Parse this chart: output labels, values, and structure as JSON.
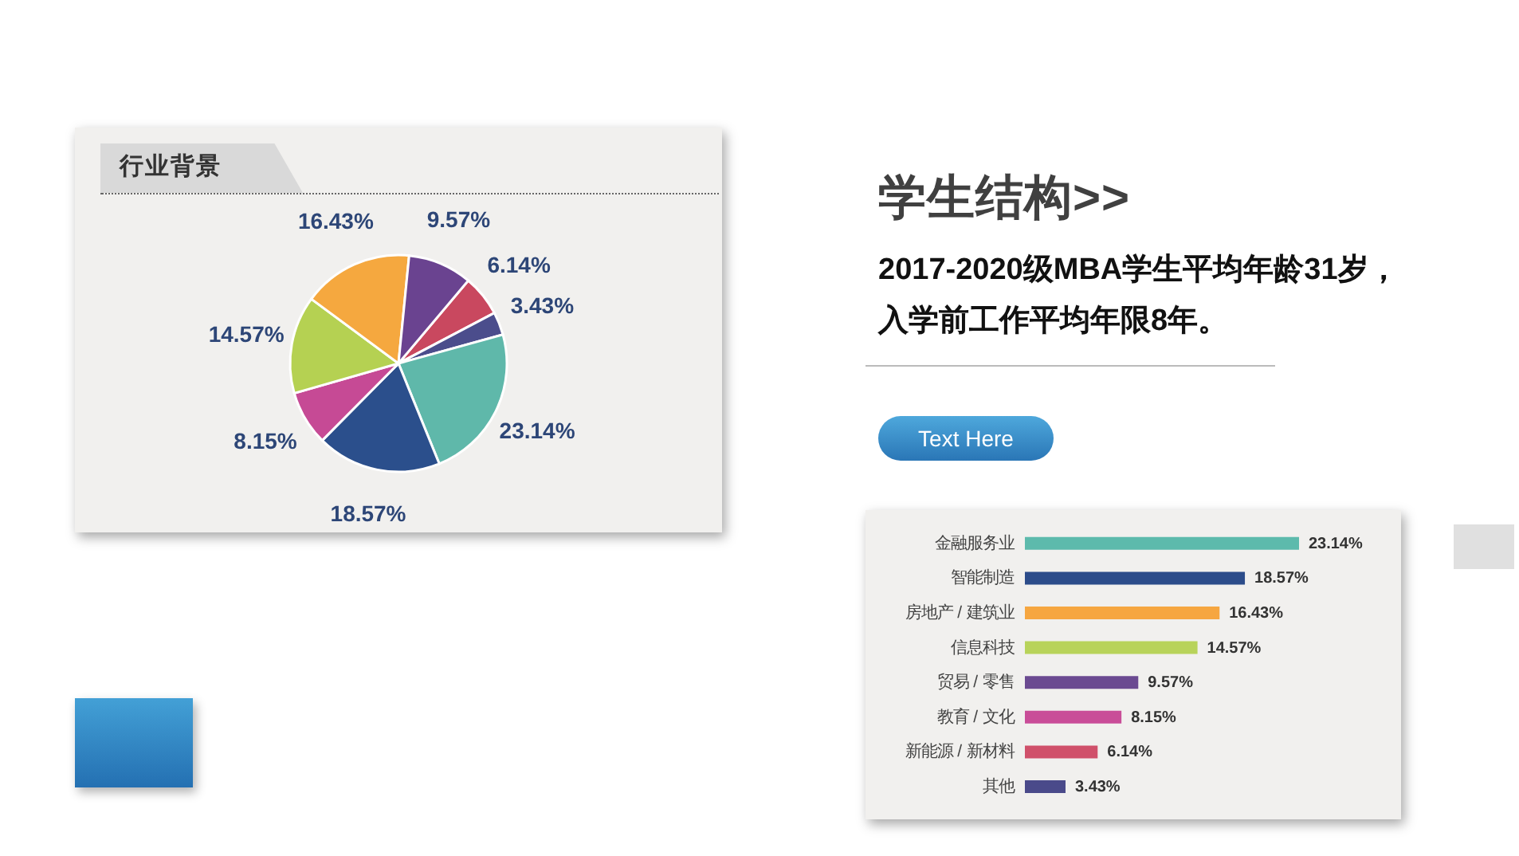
{
  "chart_data": [
    {
      "type": "pie",
      "title": "行业背景",
      "categories": [
        null,
        null,
        null,
        null,
        null,
        null,
        null,
        null
      ],
      "values": [
        6.14,
        3.43,
        23.14,
        18.57,
        8.15,
        14.57,
        16.43,
        9.57
      ],
      "colors": [
        "#c9485f",
        "#4b4d8c",
        "#5fb8aa",
        "#2b4f8c",
        "#c64a95",
        "#b5d152",
        "#f5a83f",
        "#6a4390"
      ],
      "value_labels": [
        "6.14%",
        "3.43%",
        "23.14%",
        "18.57%",
        "8.15%",
        "14.57%",
        "16.43%",
        "9.57%"
      ]
    },
    {
      "type": "bar",
      "orientation": "horizontal",
      "categories": [
        "金融服务业",
        "智能制造",
        "房地产 / 建筑业",
        "信息科技",
        "贸易 / 零售",
        "教育 / 文化",
        "新能源 / 新材料",
        "其他"
      ],
      "values": [
        23.14,
        18.57,
        16.43,
        14.57,
        9.57,
        8.15,
        6.14,
        3.43
      ],
      "colors": [
        "#5dbaac",
        "#2c4c8a",
        "#f6a640",
        "#b8d35a",
        "#6b4a91",
        "#c94d98",
        "#d0506a",
        "#4a4a8a"
      ],
      "value_labels": [
        "23.14%",
        "18.57%",
        "16.43%",
        "14.57%",
        "9.57%",
        "8.15%",
        "6.14%",
        "3.43%"
      ]
    },
    {
      "type": "other",
      "title": "学生结构>>",
      "subtitle": "2017-2020级MBA学生平均年龄31岁，入学前工作平均年限8年。",
      "annotations": [
        "Text Here"
      ]
    }
  ]
}
